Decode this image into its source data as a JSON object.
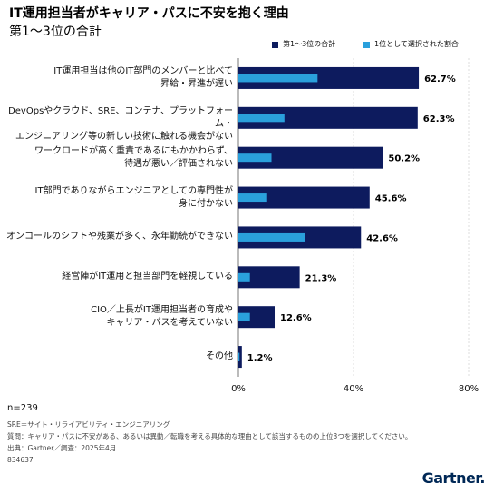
{
  "title": "IT運用担当者がキャリア・パスに不安を抱く理由",
  "subtitle": "第1～3位の合計",
  "legend": {
    "series1": "第1～3位の合計",
    "series2": "1位として選択された割合"
  },
  "colors": {
    "series1": "#0d1b5e",
    "series2": "#2aa0dc",
    "grid": "#c8c8c8"
  },
  "chart_data": {
    "type": "bar",
    "orientation": "horizontal",
    "title": "IT運用担当者がキャリア・パスに不安を抱く理由",
    "subtitle": "第1～3位の合計",
    "categories": [
      "IT運用担当は他のIT部門のメンバーと比べて\n昇給・昇進が遅い",
      "DevOpsやクラウド、SRE、コンテナ、プラットフォーム・\nエンジニアリング等の新しい技術に触れる機会がない",
      "ワークロードが高く重責であるにもかかわらず、\n待遇が悪い／評価されない",
      "IT部門でありながらエンジニアとしての専門性が\n身に付かない",
      "オンコールのシフトや残業が多く、永年勤続ができない",
      "経営陣がIT運用と担当部門を軽視している",
      "CIO／上長がIT運用担当者の育成や\nキャリア・パスを考えていない",
      "その他"
    ],
    "series": [
      {
        "name": "第1～3位の合計",
        "values": [
          62.7,
          62.3,
          50.2,
          45.6,
          42.6,
          21.3,
          12.6,
          1.2
        ],
        "labels": [
          "62.7%",
          "62.3%",
          "50.2%",
          "45.6%",
          "42.6%",
          "21.3%",
          "12.6%",
          "1.2%"
        ]
      },
      {
        "name": "1位として選択された割合",
        "values": [
          27.5,
          16,
          11.5,
          10,
          23,
          4,
          4,
          0.4
        ]
      }
    ],
    "xlim": [
      0,
      80
    ],
    "xticks": [
      "0%",
      "40%",
      "80%"
    ],
    "grid": true,
    "legend_position": "top-right"
  },
  "footer": {
    "n": "n=239",
    "sre": "SRE＝サイト・リライアビリティ・エンジニアリング",
    "question": "質問：キャリア・パスに不安がある、あるいは異動／転職を考える具体的な理由として該当するものの上位3つを選択してください。",
    "source": "出典：Gartner／調査：2025年4月",
    "doc_id": "834637",
    "logo": "Gartner."
  }
}
